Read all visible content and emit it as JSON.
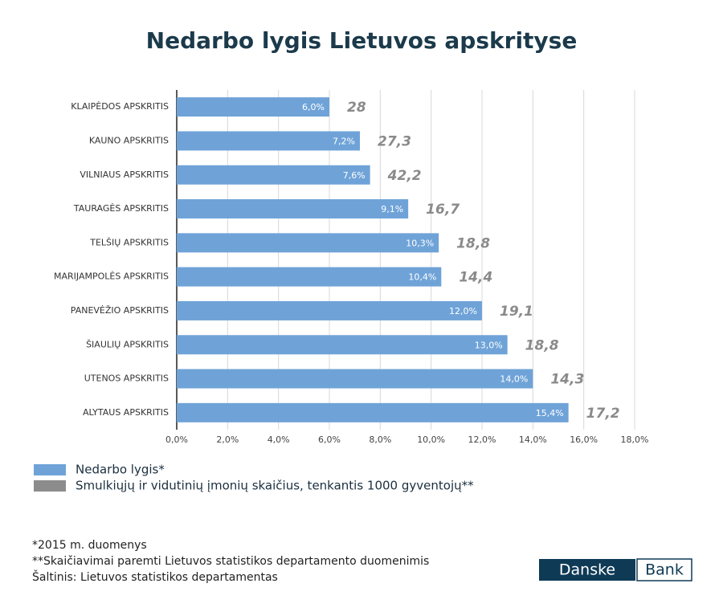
{
  "chart_data": {
    "type": "bar",
    "title": "Nedarbo lygis Lietuvos apskrityse",
    "categories": [
      "KLAIPĖDOS APSKRITIS",
      "KAUNO APSKRITIS",
      "VILNIAUS APSKRITIS",
      "TAURAGĖS APSKRITIS",
      "TELŠIŲ APSKRITIS",
      "MARIJAMPOLĖS APSKRITIS",
      "PANEVĖŽIO APSKRITIS",
      "ŠIAULIŲ APSKRITIS",
      "UTENOS APSKRITIS",
      "ALYTAUS APSKRITIS"
    ],
    "series": [
      {
        "name": "Nedarbo lygis*",
        "color": "#6fa3d8",
        "values": [
          6.0,
          7.2,
          7.6,
          9.1,
          10.3,
          10.4,
          12.0,
          13.0,
          14.0,
          15.4
        ],
        "value_labels": [
          "6,0%",
          "7,2%",
          "7,6%",
          "9,1%",
          "10,3%",
          "10,4%",
          "12,0%",
          "13,0%",
          "14,0%",
          "15,4%"
        ]
      },
      {
        "name": "Smulkiųjų ir vidutinių įmonių skaičius, tenkantis 1000 gyventojų**",
        "color": "#8c8c8c",
        "values": [
          28,
          27.3,
          42.2,
          16.7,
          18.8,
          14.4,
          19.1,
          18.8,
          14.3,
          17.2
        ],
        "value_labels": [
          "28",
          "27,3",
          "42,2",
          "16,7",
          "18,8",
          "14,4",
          "19,1",
          "18,8",
          "14,3",
          "17,2"
        ]
      }
    ],
    "xlim": [
      0,
      18
    ],
    "xticks": [
      {
        "value": 0,
        "label": "0,0%"
      },
      {
        "value": 2,
        "label": "2,0%"
      },
      {
        "value": 4,
        "label": "4,0%"
      },
      {
        "value": 6,
        "label": "6,0%"
      },
      {
        "value": 8,
        "label": "8,0%"
      },
      {
        "value": 10,
        "label": "10,0%"
      },
      {
        "value": 12,
        "label": "12,0%"
      },
      {
        "value": 14,
        "label": "14,0%"
      },
      {
        "value": 16,
        "label": "16,0%"
      },
      {
        "value": 18,
        "label": "18,0%"
      }
    ],
    "grid": true,
    "notes": [
      "*2015 m. duomenys",
      "**Skaičiavimai paremti Lietuvos statistikos departamento duomenimis",
      "Šaltinis: Lietuvos statistikos departamentas"
    ],
    "logo": [
      "Danske",
      "Bank"
    ]
  }
}
